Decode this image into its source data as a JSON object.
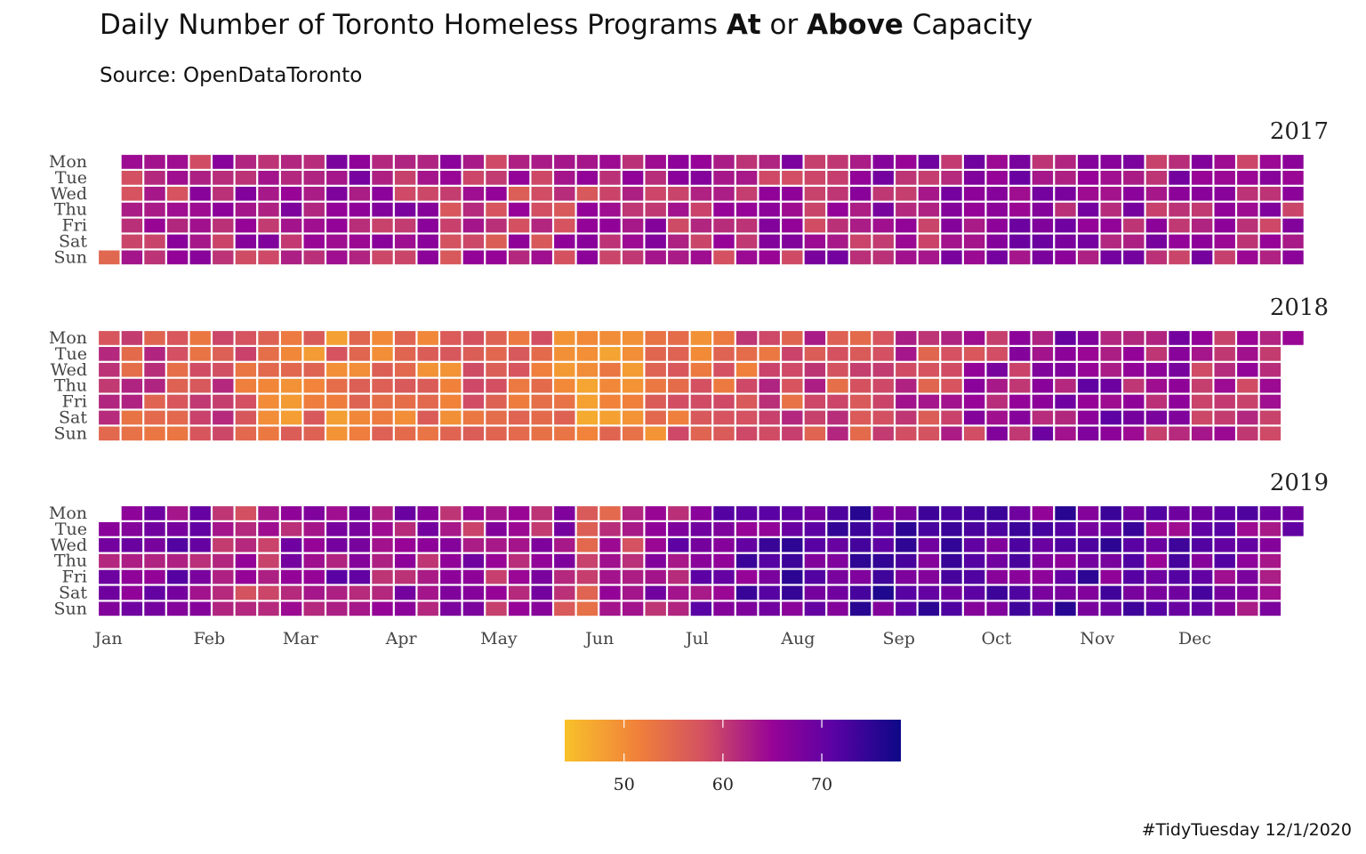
{
  "header": {
    "title_parts": [
      "Daily Number of Toronto Homeless Programs ",
      "At",
      " or ",
      "Above",
      " Capacity"
    ],
    "subtitle": "Source: OpenDataToronto",
    "caption": "#TidyTuesday 12/1/2020"
  },
  "chart_data": {
    "type": "heatmap",
    "title": "Daily Number of Toronto Homeless Programs At or Above Capacity",
    "subtitle": "Source: OpenDataToronto",
    "facets": [
      "2017",
      "2018",
      "2019"
    ],
    "y_categories": [
      "Mon",
      "Tue",
      "Wed",
      "Thu",
      "Fri",
      "Sat",
      "Sun"
    ],
    "x_month_labels": [
      "Jan",
      "Feb",
      "Mar",
      "Apr",
      "May",
      "Jun",
      "Jul",
      "Aug",
      "Sep",
      "Oct",
      "Nov",
      "Dec"
    ],
    "cell_unit": "one day (week column × weekday row)",
    "color_scale": {
      "name": "plasma (reversed)",
      "domain": [
        44,
        78
      ],
      "ticks": [
        50,
        60,
        70
      ],
      "low_color": "#f8c12a",
      "high_color": "#0d0887"
    },
    "years": [
      {
        "year": 2017,
        "first_weekday": 6,
        "weeks": 53,
        "days": 365,
        "approx_range": [
          47,
          77
        ],
        "periods": [
          [
            0,
            60
          ],
          [
            14,
            62
          ],
          [
            70,
            64
          ],
          [
            120,
            61
          ],
          [
            160,
            62
          ],
          [
            200,
            63
          ],
          [
            243,
            64
          ],
          [
            290,
            65
          ],
          [
            330,
            64
          ],
          [
            364,
            63
          ]
        ]
      },
      {
        "year": 2018,
        "first_weekday": 0,
        "weeks": 53,
        "days": 365,
        "approx_range": [
          45,
          72
        ],
        "periods": [
          [
            0,
            58
          ],
          [
            40,
            57
          ],
          [
            60,
            53
          ],
          [
            95,
            52
          ],
          [
            120,
            56
          ],
          [
            150,
            51
          ],
          [
            175,
            53
          ],
          [
            210,
            58
          ],
          [
            250,
            59
          ],
          [
            280,
            64
          ],
          [
            310,
            66
          ],
          [
            345,
            63
          ],
          [
            364,
            60
          ]
        ]
      },
      {
        "year": 2019,
        "first_weekday": 1,
        "weeks": 53,
        "days": 365,
        "approx_range": [
          50,
          77
        ],
        "periods": [
          [
            0,
            64
          ],
          [
            20,
            68
          ],
          [
            45,
            62
          ],
          [
            70,
            67
          ],
          [
            100,
            64
          ],
          [
            140,
            65
          ],
          [
            150,
            58
          ],
          [
            170,
            65
          ],
          [
            200,
            70
          ],
          [
            240,
            72
          ],
          [
            270,
            70
          ],
          [
            300,
            71
          ],
          [
            330,
            69
          ],
          [
            364,
            67
          ]
        ]
      }
    ]
  }
}
